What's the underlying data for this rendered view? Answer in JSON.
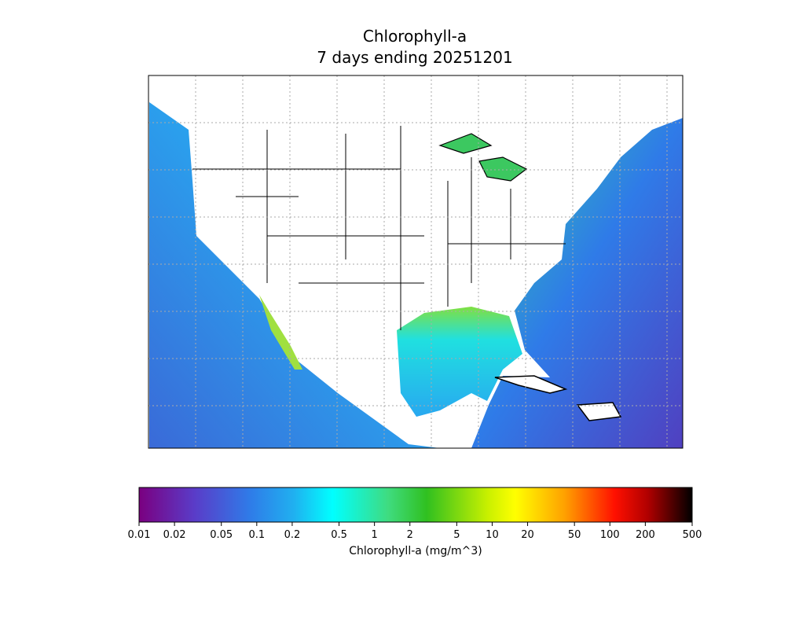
{
  "map": {
    "title": "Chlorophyll-a",
    "subtitle": "7 days ending 20251201",
    "colorbar": {
      "label": "Chlorophyll-a (mg/m^3)",
      "scale": "log",
      "lim": [
        0.01,
        500
      ],
      "ticks": [
        0.01,
        0.02,
        0.05,
        0.1,
        0.2,
        0.5,
        1,
        2,
        5,
        10,
        20,
        50,
        100,
        200,
        500
      ]
    }
  }
}
